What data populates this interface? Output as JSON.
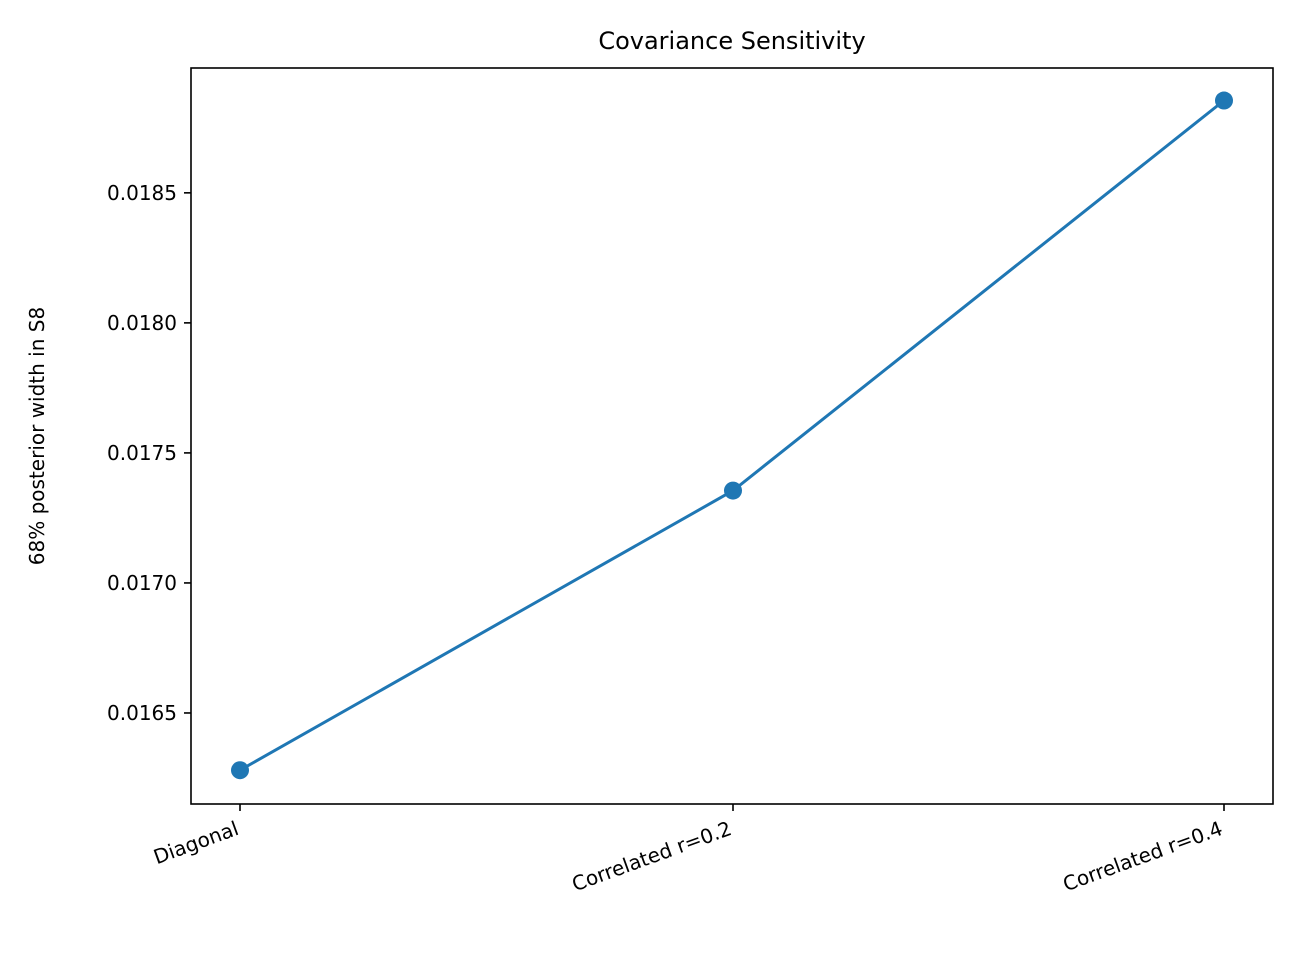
{
  "chart_data": {
    "type": "line",
    "title": "Covariance Sensitivity",
    "xlabel": "",
    "ylabel": "68% posterior width in S8",
    "categories": [
      "Diagonal",
      "Correlated r=0.2",
      "Correlated r=0.4"
    ],
    "series": [
      {
        "values": [
          0.01628,
          0.017355,
          0.018855
        ],
        "color": "#1f77b4",
        "marker": "circle"
      }
    ],
    "ylim": [
      0.01615,
      0.01898
    ],
    "yticks": [
      0.0165,
      0.017,
      0.0175,
      0.018,
      0.0185
    ],
    "ytick_labels": [
      "0.0165",
      "0.0170",
      "0.0175",
      "0.0180",
      "0.0185"
    ],
    "grid": false
  }
}
